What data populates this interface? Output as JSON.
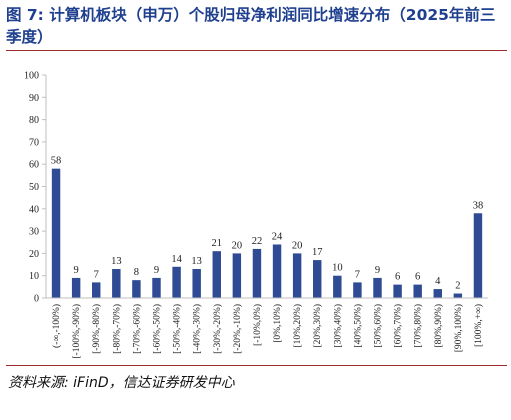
{
  "header": {
    "title": "图 7: 计算机板块（申万）个股归母净利润同比增速分布（2025年前三季度）"
  },
  "footer": {
    "source": "资料来源: iFinD，信达证券研发中心"
  },
  "colors": {
    "bar": "#2e4b94",
    "axis": "#bfbfbf",
    "title": "#1f3f8f",
    "rule": "#9c2b2b"
  },
  "chart_data": {
    "type": "bar",
    "title": "",
    "xlabel": "",
    "ylabel": "",
    "ylim": [
      0,
      100
    ],
    "yticks": [
      0,
      10,
      20,
      30,
      40,
      50,
      60,
      70,
      80,
      90,
      100
    ],
    "grid": false,
    "legend": "none",
    "categories": [
      "(-∞,-100%)",
      "[-100%,-90%)",
      "[-90%,-80%)",
      "[-80%,-70%)",
      "[-70%,-60%)",
      "[-60%,-50%)",
      "[-50%,-40%)",
      "[-40%,-30%)",
      "[-30%,-20%)",
      "[-20%,-10%)",
      "[-10%,0%)",
      "[0%,10%)",
      "[10%,20%)",
      "[20%,30%)",
      "[30%,40%)",
      "[40%,50%)",
      "[50%,60%)",
      "[60%,70%)",
      "[70%,80%)",
      "[80%,90%)",
      "[90%,100%)",
      "[100%,+∞)"
    ],
    "values": [
      58,
      9,
      7,
      13,
      8,
      9,
      14,
      13,
      21,
      20,
      22,
      24,
      20,
      17,
      10,
      7,
      9,
      6,
      6,
      4,
      2,
      38
    ]
  }
}
